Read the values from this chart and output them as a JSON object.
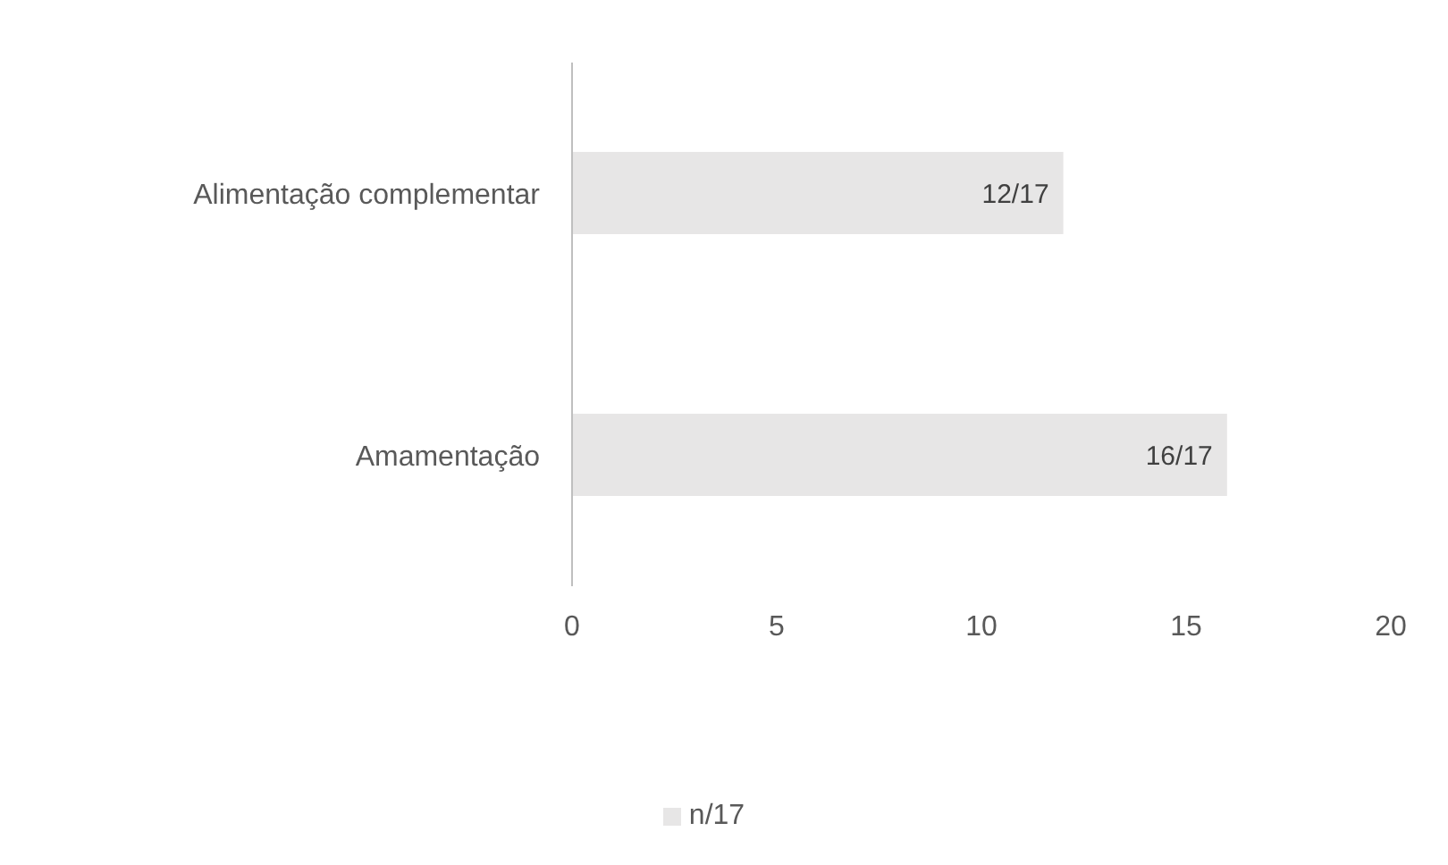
{
  "chart_data": {
    "type": "bar",
    "orientation": "horizontal",
    "categories": [
      "Alimentação complementar",
      "Amamentação"
    ],
    "series": [
      {
        "name": "n/17",
        "color": "#e7e6e6",
        "values": [
          12,
          16
        ],
        "value_labels": [
          "12/17",
          "16/17"
        ]
      }
    ],
    "xlim": [
      0,
      20
    ],
    "xticks": [
      0,
      5,
      10,
      15,
      20
    ],
    "legend": "bottom"
  }
}
